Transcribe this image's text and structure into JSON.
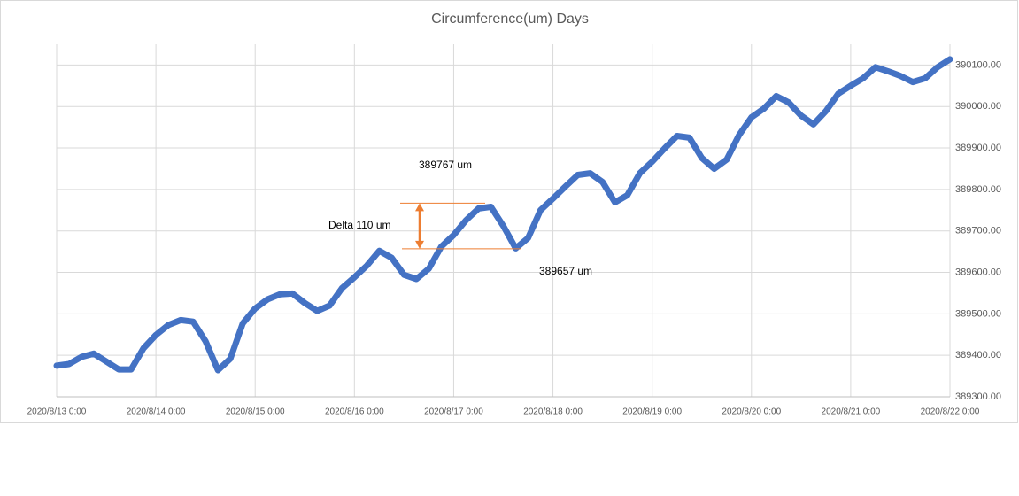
{
  "chart_data": {
    "type": "line",
    "title": "Circumference(um) Days",
    "x": [
      "2020/8/13 0:00",
      "2020/8/13 3:00",
      "2020/8/13 6:00",
      "2020/8/13 9:00",
      "2020/8/13 12:00",
      "2020/8/13 15:00",
      "2020/8/13 18:00",
      "2020/8/13 21:00",
      "2020/8/14 0:00",
      "2020/8/14 3:00",
      "2020/8/14 6:00",
      "2020/8/14 9:00",
      "2020/8/14 12:00",
      "2020/8/14 15:00",
      "2020/8/14 18:00",
      "2020/8/14 21:00",
      "2020/8/15 0:00",
      "2020/8/15 3:00",
      "2020/8/15 6:00",
      "2020/8/15 9:00",
      "2020/8/15 12:00",
      "2020/8/15 15:00",
      "2020/8/15 18:00",
      "2020/8/15 21:00",
      "2020/8/16 0:00",
      "2020/8/16 3:00",
      "2020/8/16 6:00",
      "2020/8/16 9:00",
      "2020/8/16 12:00",
      "2020/8/16 15:00",
      "2020/8/16 18:00",
      "2020/8/16 21:00",
      "2020/8/17 0:00",
      "2020/8/17 3:00",
      "2020/8/17 6:00",
      "2020/8/17 9:00",
      "2020/8/17 12:00",
      "2020/8/17 15:00",
      "2020/8/17 18:00",
      "2020/8/17 21:00",
      "2020/8/18 0:00",
      "2020/8/18 3:00",
      "2020/8/18 6:00",
      "2020/8/18 9:00",
      "2020/8/18 12:00",
      "2020/8/18 15:00",
      "2020/8/18 18:00",
      "2020/8/18 21:00",
      "2020/8/19 0:00",
      "2020/8/19 3:00",
      "2020/8/19 6:00",
      "2020/8/19 9:00",
      "2020/8/19 12:00",
      "2020/8/19 15:00",
      "2020/8/19 18:00",
      "2020/8/19 21:00",
      "2020/8/20 0:00",
      "2020/8/20 3:00",
      "2020/8/20 6:00",
      "2020/8/20 9:00",
      "2020/8/20 12:00",
      "2020/8/20 15:00",
      "2020/8/20 18:00",
      "2020/8/20 21:00",
      "2020/8/21 0:00",
      "2020/8/21 3:00",
      "2020/8/21 6:00",
      "2020/8/21 9:00",
      "2020/8/21 12:00",
      "2020/8/21 15:00",
      "2020/8/21 18:00",
      "2020/8/21 21:00",
      "2020/8/22 0:00"
    ],
    "series": [
      {
        "color": "#4472c4",
        "values": [
          389375,
          389379,
          389396,
          389404,
          389385,
          389366,
          389366,
          389417,
          389449,
          389473,
          389485,
          389481,
          389434,
          389364,
          389392,
          389477,
          389513,
          389535,
          389547,
          389549,
          389526,
          389507,
          389520,
          389562,
          389588,
          389616,
          389652,
          389635,
          389594,
          389584,
          389609,
          389662,
          389690,
          389726,
          389754,
          389758,
          389712,
          389658,
          389683,
          389750,
          389778,
          389807,
          389835,
          389839,
          389818,
          389769,
          389786,
          389839,
          389867,
          389899,
          389929,
          389925,
          389876,
          389850,
          389872,
          389931,
          389974,
          389995,
          390025,
          390010,
          389978,
          389957,
          389989,
          390031,
          390050,
          390068,
          390095,
          390085,
          390074,
          390059,
          390068,
          390095,
          390114
        ]
      }
    ],
    "xlim": [
      "2020/8/13 0:00",
      "2020/8/22 0:00"
    ],
    "xticks": [
      "2020/8/13 0:00",
      "2020/8/14 0:00",
      "2020/8/15 0:00",
      "2020/8/16 0:00",
      "2020/8/17 0:00",
      "2020/8/18 0:00",
      "2020/8/19 0:00",
      "2020/8/20 0:00",
      "2020/8/21 0:00",
      "2020/8/22 0:00"
    ],
    "ylim": [
      389300,
      390150
    ],
    "yticks": [
      {
        "value": 389300,
        "label": "389300.00"
      },
      {
        "value": 389400,
        "label": "389400.00"
      },
      {
        "value": 389500,
        "label": "389500.00"
      },
      {
        "value": 389600,
        "label": "389600.00"
      },
      {
        "value": 389700,
        "label": "389700.00"
      },
      {
        "value": 389800,
        "label": "389800.00"
      },
      {
        "value": 389900,
        "label": "389900.00"
      },
      {
        "value": 390000,
        "label": "390000.00"
      },
      {
        "value": 390100,
        "label": "390100.00"
      }
    ],
    "grid": true,
    "annotations": [
      {
        "text": "389767  um",
        "value": 389767
      },
      {
        "text": "Delta 110  um",
        "value": 110
      },
      {
        "text": "389657  um",
        "value": 389657
      }
    ]
  }
}
